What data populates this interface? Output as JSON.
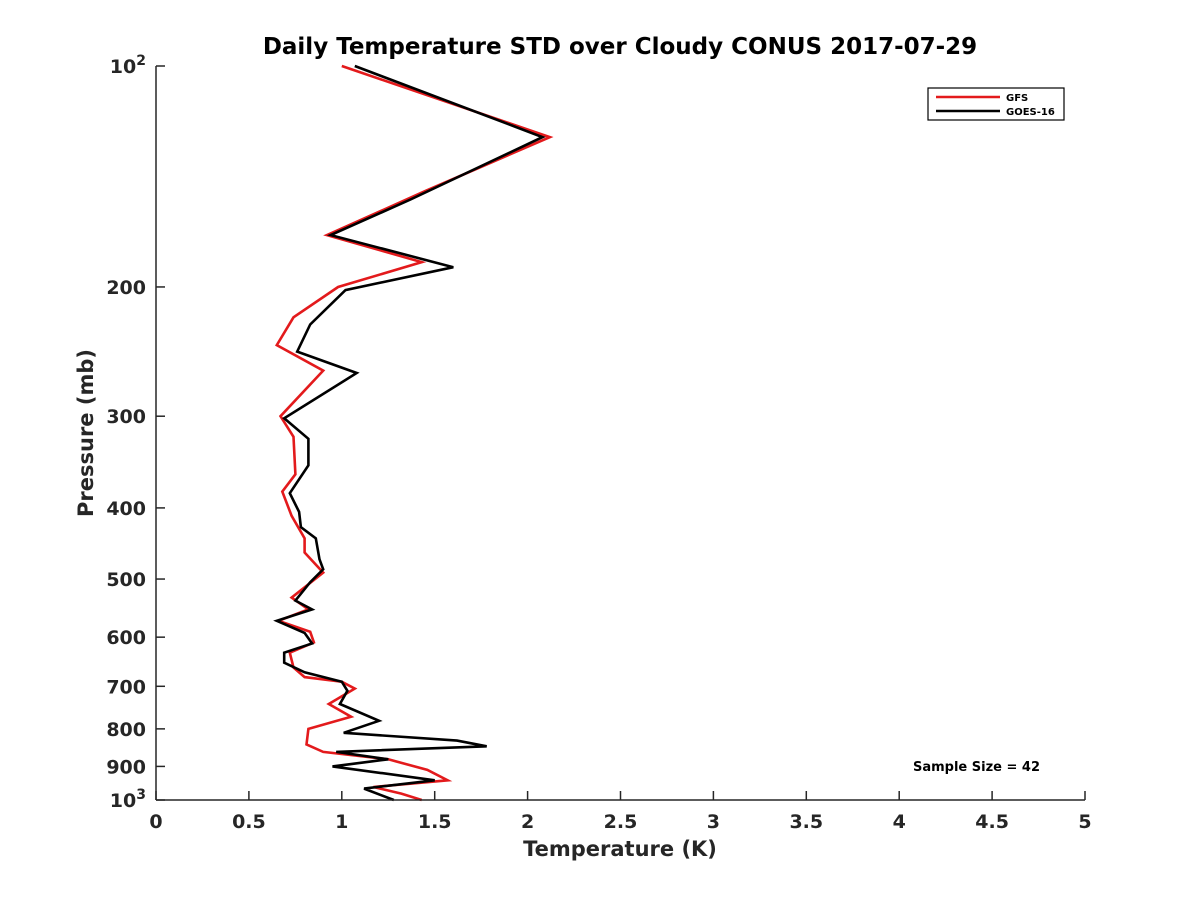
{
  "chart_data": {
    "type": "line",
    "title": "Daily Temperature STD over Cloudy CONUS 2017-07-29",
    "xlabel": "Temperature (K)",
    "ylabel": "Pressure (mb)",
    "xlim": [
      0,
      5
    ],
    "ylim": [
      100,
      1000
    ],
    "y_scale": "log",
    "y_reversed": true,
    "grid": false,
    "legend_position": "top-right",
    "x_ticks": [
      0,
      0.5,
      1,
      1.5,
      2,
      2.5,
      3,
      3.5,
      4,
      4.5,
      5
    ],
    "x_tick_labels": [
      "0",
      "0.5",
      "1",
      "1.5",
      "2",
      "2.5",
      "3",
      "3.5",
      "4",
      "4.5",
      "5"
    ],
    "y_ticks": [
      {
        "value": 100,
        "base": "10",
        "exp": "2",
        "label": ""
      },
      {
        "value": 200,
        "label": "200"
      },
      {
        "value": 300,
        "label": "300"
      },
      {
        "value": 400,
        "label": "400"
      },
      {
        "value": 500,
        "label": "500"
      },
      {
        "value": 600,
        "label": "600"
      },
      {
        "value": 700,
        "label": "700"
      },
      {
        "value": 800,
        "label": "800"
      },
      {
        "value": 900,
        "label": "900"
      },
      {
        "value": 1000,
        "base": "10",
        "exp": "3",
        "label": ""
      }
    ],
    "series": [
      {
        "name": "GFS",
        "color": "#e31a1c",
        "points": [
          [
            1.0,
            100
          ],
          [
            2.12,
            125
          ],
          [
            1.45,
            148
          ],
          [
            0.92,
            170
          ],
          [
            1.43,
            185
          ],
          [
            0.98,
            200
          ],
          [
            0.74,
            220
          ],
          [
            0.65,
            240
          ],
          [
            0.9,
            260
          ],
          [
            0.67,
            300
          ],
          [
            0.74,
            320
          ],
          [
            0.75,
            360
          ],
          [
            0.68,
            380
          ],
          [
            0.73,
            410
          ],
          [
            0.8,
            440
          ],
          [
            0.8,
            460
          ],
          [
            0.9,
            490
          ],
          [
            0.73,
            530
          ],
          [
            0.82,
            550
          ],
          [
            0.66,
            570
          ],
          [
            0.83,
            590
          ],
          [
            0.85,
            610
          ],
          [
            0.72,
            630
          ],
          [
            0.74,
            660
          ],
          [
            0.8,
            680
          ],
          [
            1.0,
            690
          ],
          [
            1.07,
            705
          ],
          [
            0.93,
            740
          ],
          [
            1.05,
            770
          ],
          [
            0.82,
            800
          ],
          [
            0.81,
            840
          ],
          [
            0.9,
            860
          ],
          [
            1.25,
            880
          ],
          [
            1.46,
            910
          ],
          [
            1.57,
            940
          ],
          [
            1.17,
            960
          ],
          [
            1.32,
            980
          ],
          [
            1.43,
            1000
          ]
        ]
      },
      {
        "name": "GOES-16",
        "color": "#000000",
        "points": [
          [
            1.07,
            100
          ],
          [
            2.08,
            125
          ],
          [
            1.37,
            152
          ],
          [
            0.94,
            170
          ],
          [
            1.6,
            188
          ],
          [
            1.02,
            202
          ],
          [
            0.83,
            225
          ],
          [
            0.76,
            245
          ],
          [
            1.08,
            262
          ],
          [
            0.69,
            302
          ],
          [
            0.82,
            322
          ],
          [
            0.82,
            350
          ],
          [
            0.72,
            382
          ],
          [
            0.77,
            405
          ],
          [
            0.78,
            425
          ],
          [
            0.86,
            440
          ],
          [
            0.88,
            470
          ],
          [
            0.9,
            485
          ],
          [
            0.83,
            505
          ],
          [
            0.75,
            535
          ],
          [
            0.84,
            550
          ],
          [
            0.65,
            570
          ],
          [
            0.8,
            592
          ],
          [
            0.84,
            612
          ],
          [
            0.69,
            630
          ],
          [
            0.69,
            650
          ],
          [
            0.8,
            670
          ],
          [
            1.0,
            690
          ],
          [
            1.03,
            710
          ],
          [
            0.99,
            740
          ],
          [
            1.2,
            780
          ],
          [
            1.01,
            810
          ],
          [
            1.62,
            830
          ],
          [
            1.78,
            845
          ],
          [
            0.97,
            860
          ],
          [
            1.25,
            880
          ],
          [
            0.95,
            900
          ],
          [
            1.5,
            940
          ],
          [
            1.12,
            965
          ],
          [
            1.28,
            1000
          ]
        ]
      }
    ],
    "annotation": "Sample Size = 42"
  }
}
